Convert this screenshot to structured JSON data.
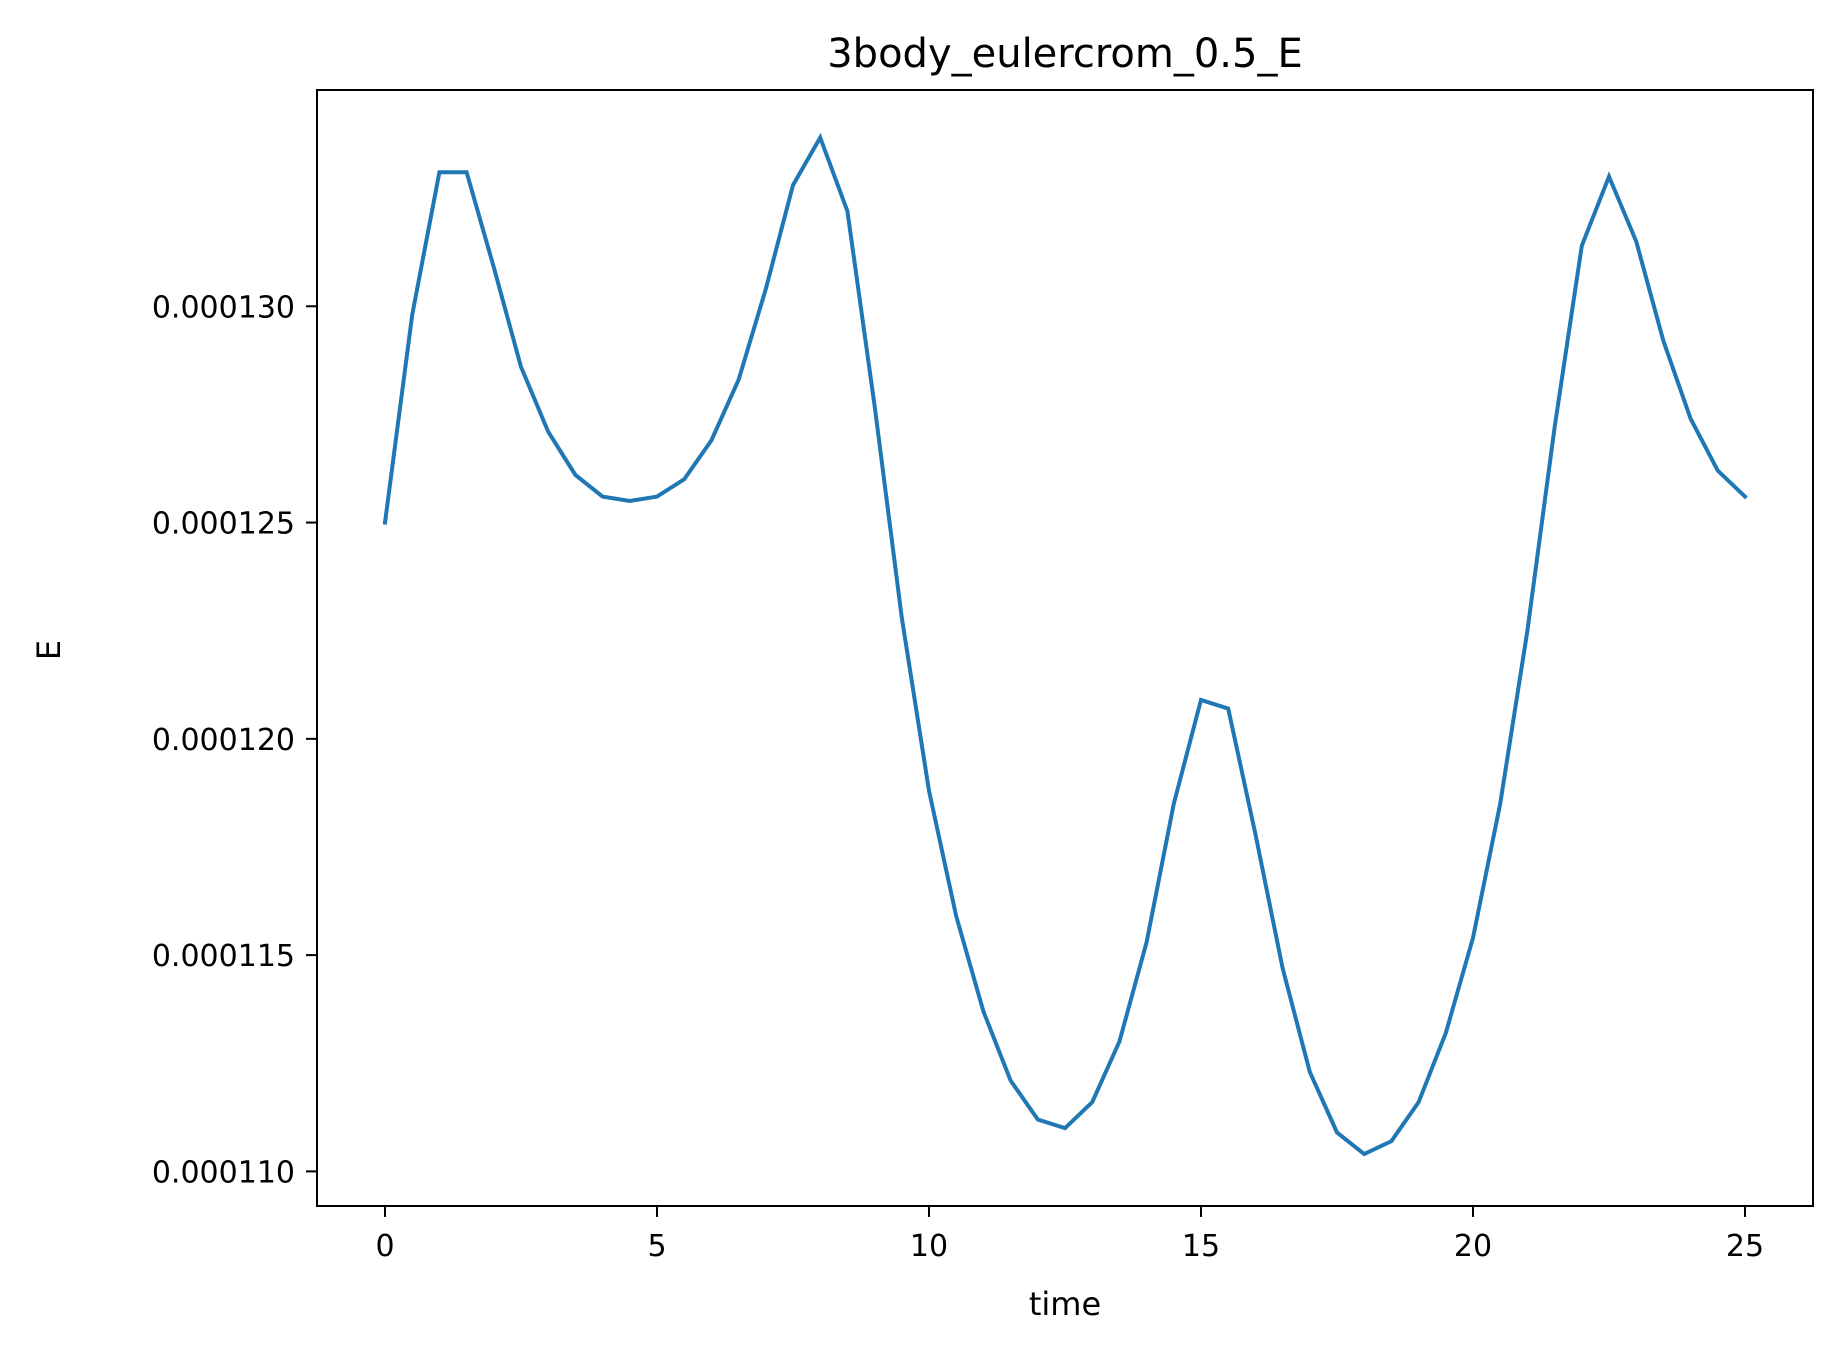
{
  "chart_data": {
    "type": "line",
    "title": "3body_eulercrom_0.5_E",
    "xlabel": "time",
    "ylabel": "E",
    "xlim": [
      -1.25,
      26.25
    ],
    "ylim": [
      0.0001092,
      0.000135
    ],
    "xticks": [
      0,
      5,
      10,
      15,
      20,
      25
    ],
    "xtick_labels": [
      "0",
      "5",
      "10",
      "15",
      "20",
      "25"
    ],
    "yticks": [
      0.00011,
      0.000115,
      0.00012,
      0.000125,
      0.00013
    ],
    "ytick_labels": [
      "0.000110",
      "0.000115",
      "0.000120",
      "0.000125",
      "0.000130"
    ],
    "grid": false,
    "series": [
      {
        "color": "#1f77b4",
        "x": [
          0,
          0.5,
          1,
          1.5,
          2,
          2.5,
          3,
          3.5,
          4,
          4.5,
          5,
          5.5,
          6,
          6.5,
          7,
          7.5,
          8,
          8.5,
          9,
          9.5,
          10,
          10.5,
          11,
          11.5,
          12,
          12.5,
          13,
          13.5,
          14,
          14.5,
          15,
          15.5,
          16,
          16.5,
          17,
          17.5,
          18,
          18.5,
          19,
          19.5,
          20,
          20.5,
          21,
          21.5,
          22,
          22.5,
          23,
          23.5,
          24,
          24.5,
          25
        ],
        "y": [
          0.000125,
          0.0001298,
          0.0001331,
          0.0001331,
          0.0001309,
          0.0001286,
          0.0001271,
          0.0001261,
          0.0001256,
          0.0001255,
          0.0001256,
          0.000126,
          0.0001269,
          0.0001283,
          0.0001304,
          0.0001328,
          0.0001339,
          0.0001322,
          0.0001277,
          0.0001228,
          0.0001188,
          0.0001159,
          0.0001137,
          0.0001121,
          0.0001112,
          0.000111,
          0.0001116,
          0.000113,
          0.0001153,
          0.0001185,
          0.0001209,
          0.0001207,
          0.0001178,
          0.0001147,
          0.0001123,
          0.0001109,
          0.0001104,
          0.0001107,
          0.0001116,
          0.0001132,
          0.0001154,
          0.0001185,
          0.0001225,
          0.0001272,
          0.0001314,
          0.000133,
          0.0001315,
          0.0001292,
          0.0001274,
          0.0001262,
          0.0001256
        ]
      }
    ]
  }
}
